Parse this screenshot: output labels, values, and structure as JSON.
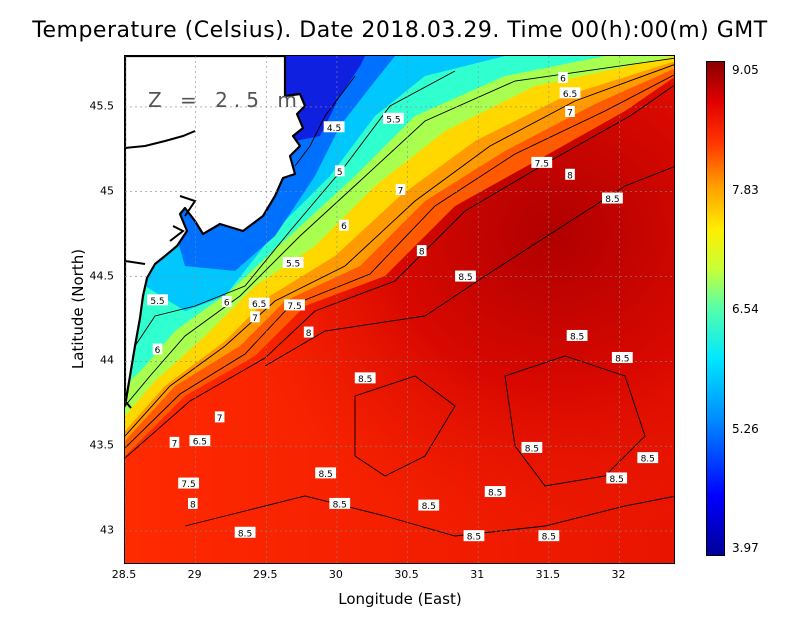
{
  "title": "Temperature (Celsius). Date 2018.03.29. Time 00(h):00(m) GMT",
  "depth_label": "Z = 2.5 m",
  "chart_data": {
    "type": "heatmap",
    "xlabel": "Longitude (East)",
    "ylabel": "Latitude (North)",
    "xlim": [
      28.5,
      32.4
    ],
    "ylim": [
      42.8,
      45.8
    ],
    "x_ticks": [
      "28.5",
      "29",
      "29.5",
      "30",
      "30.5",
      "31",
      "31.5",
      "32"
    ],
    "y_ticks": [
      "43",
      "43.5",
      "44",
      "44.5",
      "45",
      "45.5"
    ],
    "colorbar": {
      "min": 3.97,
      "max": 9.05,
      "tick_labels": [
        "9.05",
        "7.83",
        "6.54",
        "5.26",
        "3.97"
      ]
    },
    "contour_levels": [
      "4.5",
      "5",
      "5.5",
      "6",
      "6.5",
      "7",
      "7.5",
      "8",
      "8.5"
    ],
    "contour_labels": [
      {
        "text": "6",
        "lon": 31.6,
        "lat": 45.67
      },
      {
        "text": "6.5",
        "lon": 31.65,
        "lat": 45.58
      },
      {
        "text": "7",
        "lon": 31.65,
        "lat": 45.47
      },
      {
        "text": "5.5",
        "lon": 30.4,
        "lat": 45.43
      },
      {
        "text": "4.5",
        "lon": 29.98,
        "lat": 45.38
      },
      {
        "text": "7.5",
        "lon": 31.45,
        "lat": 45.17
      },
      {
        "text": "8",
        "lon": 31.65,
        "lat": 45.1
      },
      {
        "text": "5",
        "lon": 30.02,
        "lat": 45.12
      },
      {
        "text": "7",
        "lon": 30.45,
        "lat": 45.01
      },
      {
        "text": "8.5",
        "lon": 31.95,
        "lat": 44.96
      },
      {
        "text": "6",
        "lon": 30.05,
        "lat": 44.8
      },
      {
        "text": "8",
        "lon": 30.6,
        "lat": 44.65
      },
      {
        "text": "5.5",
        "lon": 29.69,
        "lat": 44.58
      },
      {
        "text": "8.5",
        "lon": 30.91,
        "lat": 44.5
      },
      {
        "text": "5.5",
        "lon": 28.73,
        "lat": 44.36
      },
      {
        "text": "6",
        "lon": 29.22,
        "lat": 44.35
      },
      {
        "text": "6.5",
        "lon": 29.45,
        "lat": 44.34
      },
      {
        "text": "7.5",
        "lon": 29.7,
        "lat": 44.33
      },
      {
        "text": "7",
        "lon": 29.42,
        "lat": 44.26
      },
      {
        "text": "8",
        "lon": 29.8,
        "lat": 44.17
      },
      {
        "text": "8.5",
        "lon": 31.7,
        "lat": 44.15
      },
      {
        "text": "6",
        "lon": 28.73,
        "lat": 44.07
      },
      {
        "text": "8.5",
        "lon": 32.02,
        "lat": 44.02
      },
      {
        "text": "8.5",
        "lon": 30.2,
        "lat": 43.9
      },
      {
        "text": "7",
        "lon": 29.17,
        "lat": 43.67
      },
      {
        "text": "7",
        "lon": 28.85,
        "lat": 43.52
      },
      {
        "text": "6.5",
        "lon": 29.03,
        "lat": 43.53
      },
      {
        "text": "8.5",
        "lon": 31.38,
        "lat": 43.49
      },
      {
        "text": "8.5",
        "lon": 32.2,
        "lat": 43.43
      },
      {
        "text": "8.5",
        "lon": 29.92,
        "lat": 43.34
      },
      {
        "text": "7.5",
        "lon": 28.95,
        "lat": 43.28
      },
      {
        "text": "8.5",
        "lon": 31.98,
        "lat": 43.31
      },
      {
        "text": "8.5",
        "lon": 31.12,
        "lat": 43.23
      },
      {
        "text": "8",
        "lon": 28.98,
        "lat": 43.16
      },
      {
        "text": "8.5",
        "lon": 30.02,
        "lat": 43.16
      },
      {
        "text": "8.5",
        "lon": 30.65,
        "lat": 43.15
      },
      {
        "text": "8.5",
        "lon": 29.35,
        "lat": 42.99
      },
      {
        "text": "8.5",
        "lon": 30.97,
        "lat": 42.97
      },
      {
        "text": "8.5",
        "lon": 31.5,
        "lat": 42.97
      }
    ]
  }
}
